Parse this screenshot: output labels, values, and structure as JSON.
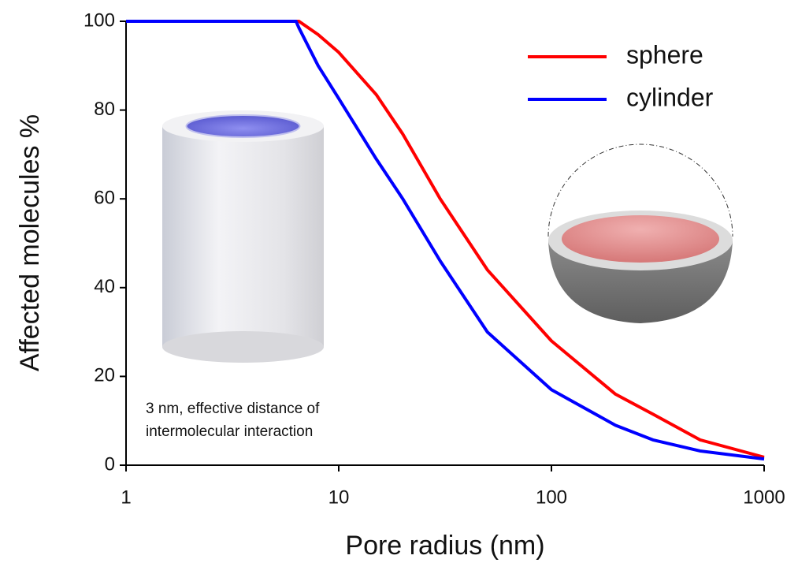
{
  "chart_data": {
    "type": "line",
    "x_label": "Pore radius (nm)",
    "y_label": "Affected molecules %",
    "annotation": [
      "3 nm, effective distance of",
      "intermolecular interaction"
    ],
    "x": [
      1,
      6.3,
      6.5,
      8,
      10,
      15,
      20,
      30,
      50,
      100,
      200,
      300,
      500,
      1000
    ],
    "series": [
      {
        "name": "sphere",
        "color": "#ff0000",
        "values": [
          100,
          100,
          100,
          97,
          93,
          83.5,
          74.6,
          60,
          44,
          28,
          16,
          11.5,
          5.7,
          1.8
        ]
      },
      {
        "name": "cylinder",
        "color": "#0000ff",
        "values": [
          100,
          100,
          98.5,
          90,
          82.6,
          69,
          60,
          46,
          30,
          17,
          9,
          5.7,
          3.2,
          1.4
        ]
      }
    ],
    "xscale": "log",
    "xlim": [
      1,
      1000
    ],
    "xticks": [
      1,
      10,
      100,
      1000
    ],
    "ylim": [
      0,
      100
    ],
    "yticks": [
      0,
      20,
      40,
      60,
      80,
      100
    ],
    "legend": "upper right"
  }
}
